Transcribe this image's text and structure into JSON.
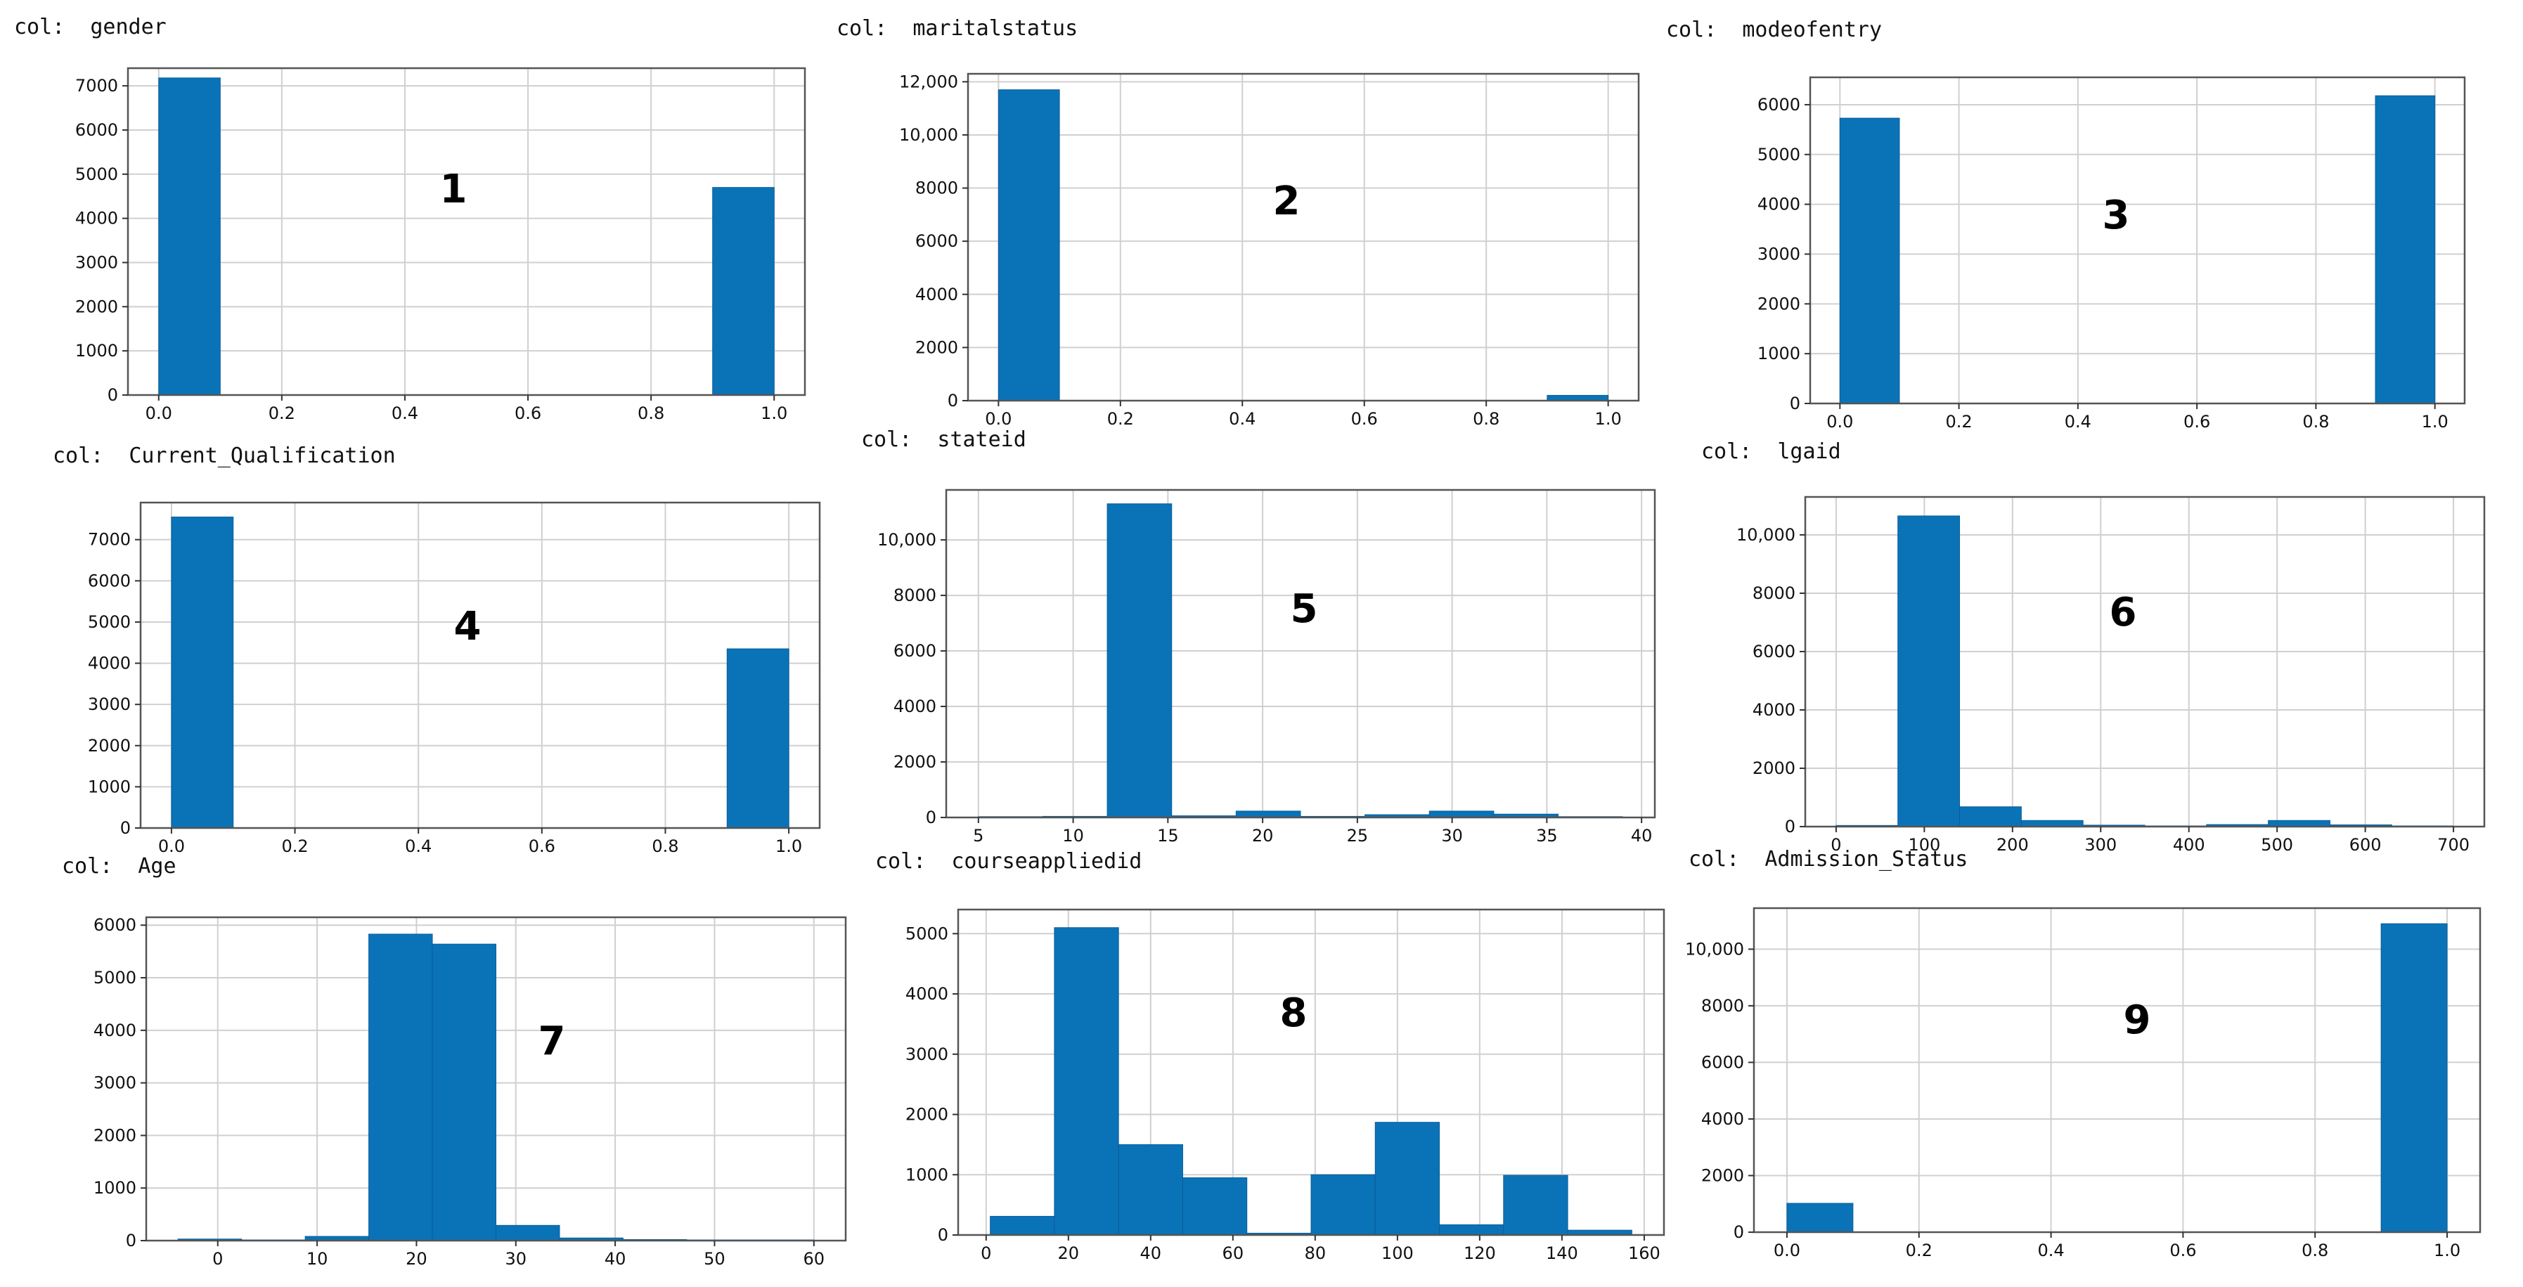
{
  "colors": {
    "bar": "#0a73b7",
    "grid": "#d0d0d0"
  },
  "chart_data": [
    {
      "type": "bar",
      "title": "col:  gender",
      "panel_label": "1",
      "bins": [
        {
          "x0": 0.0,
          "x1": 0.1,
          "y": 7180
        },
        {
          "x0": 0.9,
          "x1": 1.0,
          "y": 4700
        }
      ],
      "xlim": [
        -0.05,
        1.05
      ],
      "ylim": [
        0,
        7400
      ],
      "xticks": [
        {
          "v": 0.0,
          "label": "0.0"
        },
        {
          "v": 0.2,
          "label": "0.2"
        },
        {
          "v": 0.4,
          "label": "0.4"
        },
        {
          "v": 0.6,
          "label": "0.6"
        },
        {
          "v": 0.8,
          "label": "0.8"
        },
        {
          "v": 1.0,
          "label": "1.0"
        }
      ],
      "yticks": [
        {
          "v": 0,
          "label": "0"
        },
        {
          "v": 1000,
          "label": "1000"
        },
        {
          "v": 2000,
          "label": "2000"
        },
        {
          "v": 3000,
          "label": "3000"
        },
        {
          "v": 4000,
          "label": "4000"
        },
        {
          "v": 5000,
          "label": "5000"
        },
        {
          "v": 6000,
          "label": "6000"
        },
        {
          "v": 7000,
          "label": "7000"
        }
      ]
    },
    {
      "type": "bar",
      "title": "col:  maritalstatus",
      "panel_label": "2",
      "bins": [
        {
          "x0": 0.0,
          "x1": 0.1,
          "y": 11700
        },
        {
          "x0": 0.9,
          "x1": 1.0,
          "y": 200
        }
      ],
      "xlim": [
        -0.05,
        1.05
      ],
      "ylim": [
        0,
        12300
      ],
      "xticks": [
        {
          "v": 0.0,
          "label": "0.0"
        },
        {
          "v": 0.2,
          "label": "0.2"
        },
        {
          "v": 0.4,
          "label": "0.4"
        },
        {
          "v": 0.6,
          "label": "0.6"
        },
        {
          "v": 0.8,
          "label": "0.8"
        },
        {
          "v": 1.0,
          "label": "1.0"
        }
      ],
      "yticks": [
        {
          "v": 0,
          "label": "0"
        },
        {
          "v": 2000,
          "label": "2000"
        },
        {
          "v": 4000,
          "label": "4000"
        },
        {
          "v": 6000,
          "label": "6000"
        },
        {
          "v": 8000,
          "label": "8000"
        },
        {
          "v": 10000,
          "label": "10,000"
        },
        {
          "v": 12000,
          "label": "12,000"
        }
      ]
    },
    {
      "type": "bar",
      "title": "col:  modeofentry",
      "panel_label": "3",
      "bins": [
        {
          "x0": 0.0,
          "x1": 0.1,
          "y": 5730
        },
        {
          "x0": 0.9,
          "x1": 1.0,
          "y": 6180
        }
      ],
      "xlim": [
        -0.05,
        1.05
      ],
      "ylim": [
        0,
        6550
      ],
      "xticks": [
        {
          "v": 0.0,
          "label": "0.0"
        },
        {
          "v": 0.2,
          "label": "0.2"
        },
        {
          "v": 0.4,
          "label": "0.4"
        },
        {
          "v": 0.6,
          "label": "0.6"
        },
        {
          "v": 0.8,
          "label": "0.8"
        },
        {
          "v": 1.0,
          "label": "1.0"
        }
      ],
      "yticks": [
        {
          "v": 0,
          "label": "0"
        },
        {
          "v": 1000,
          "label": "1000"
        },
        {
          "v": 2000,
          "label": "2000"
        },
        {
          "v": 3000,
          "label": "3000"
        },
        {
          "v": 4000,
          "label": "4000"
        },
        {
          "v": 5000,
          "label": "5000"
        },
        {
          "v": 6000,
          "label": "6000"
        }
      ]
    },
    {
      "type": "bar",
      "title": "col:  Current_Qualification",
      "panel_label": "4",
      "bins": [
        {
          "x0": 0.0,
          "x1": 0.1,
          "y": 7550
        },
        {
          "x0": 0.9,
          "x1": 1.0,
          "y": 4350
        }
      ],
      "xlim": [
        -0.05,
        1.05
      ],
      "ylim": [
        0,
        7900
      ],
      "xticks": [
        {
          "v": 0.0,
          "label": "0.0"
        },
        {
          "v": 0.2,
          "label": "0.2"
        },
        {
          "v": 0.4,
          "label": "0.4"
        },
        {
          "v": 0.6,
          "label": "0.6"
        },
        {
          "v": 0.8,
          "label": "0.8"
        },
        {
          "v": 1.0,
          "label": "1.0"
        }
      ],
      "yticks": [
        {
          "v": 0,
          "label": "0"
        },
        {
          "v": 1000,
          "label": "1000"
        },
        {
          "v": 2000,
          "label": "2000"
        },
        {
          "v": 3000,
          "label": "3000"
        },
        {
          "v": 4000,
          "label": "4000"
        },
        {
          "v": 5000,
          "label": "5000"
        },
        {
          "v": 6000,
          "label": "6000"
        },
        {
          "v": 7000,
          "label": "7000"
        }
      ]
    },
    {
      "type": "bar",
      "title": "col:  stateid",
      "panel_label": "5",
      "bins": [
        {
          "x0": 5.0,
          "x1": 8.4,
          "y": 30
        },
        {
          "x0": 8.4,
          "x1": 11.8,
          "y": 40
        },
        {
          "x0": 11.8,
          "x1": 15.2,
          "y": 11300
        },
        {
          "x0": 15.2,
          "x1": 18.6,
          "y": 60
        },
        {
          "x0": 18.6,
          "x1": 22.0,
          "y": 230
        },
        {
          "x0": 22.0,
          "x1": 25.4,
          "y": 40
        },
        {
          "x0": 25.4,
          "x1": 28.8,
          "y": 100
        },
        {
          "x0": 28.8,
          "x1": 32.2,
          "y": 230
        },
        {
          "x0": 32.2,
          "x1": 35.6,
          "y": 120
        },
        {
          "x0": 35.6,
          "x1": 39.0,
          "y": 30
        }
      ],
      "xlim": [
        3.3,
        40.7
      ],
      "ylim": [
        0,
        11800
      ],
      "xticks": [
        {
          "v": 5,
          "label": "5"
        },
        {
          "v": 10,
          "label": "10"
        },
        {
          "v": 15,
          "label": "15"
        },
        {
          "v": 20,
          "label": "20"
        },
        {
          "v": 25,
          "label": "25"
        },
        {
          "v": 30,
          "label": "30"
        },
        {
          "v": 35,
          "label": "35"
        },
        {
          "v": 40,
          "label": "40"
        }
      ],
      "yticks": [
        {
          "v": 0,
          "label": "0"
        },
        {
          "v": 2000,
          "label": "2000"
        },
        {
          "v": 4000,
          "label": "4000"
        },
        {
          "v": 6000,
          "label": "6000"
        },
        {
          "v": 8000,
          "label": "8000"
        },
        {
          "v": 10000,
          "label": "10,000"
        }
      ]
    },
    {
      "type": "bar",
      "title": "col:  lgaid",
      "panel_label": "6",
      "bins": [
        {
          "x0": 0,
          "x1": 70,
          "y": 40
        },
        {
          "x0": 70,
          "x1": 140,
          "y": 10650
        },
        {
          "x0": 140,
          "x1": 210,
          "y": 680
        },
        {
          "x0": 210,
          "x1": 280,
          "y": 210
        },
        {
          "x0": 280,
          "x1": 350,
          "y": 50
        },
        {
          "x0": 350,
          "x1": 420,
          "y": 20
        },
        {
          "x0": 420,
          "x1": 490,
          "y": 70
        },
        {
          "x0": 490,
          "x1": 560,
          "y": 210
        },
        {
          "x0": 560,
          "x1": 630,
          "y": 60
        },
        {
          "x0": 630,
          "x1": 700,
          "y": 10
        }
      ],
      "xlim": [
        -35,
        735
      ],
      "ylim": [
        0,
        11300
      ],
      "xticks": [
        {
          "v": 0,
          "label": "0"
        },
        {
          "v": 100,
          "label": "100"
        },
        {
          "v": 200,
          "label": "200"
        },
        {
          "v": 300,
          "label": "300"
        },
        {
          "v": 400,
          "label": "400"
        },
        {
          "v": 500,
          "label": "500"
        },
        {
          "v": 600,
          "label": "600"
        },
        {
          "v": 700,
          "label": "700"
        }
      ],
      "yticks": [
        {
          "v": 0,
          "label": "0"
        },
        {
          "v": 2000,
          "label": "2000"
        },
        {
          "v": 4000,
          "label": "4000"
        },
        {
          "v": 6000,
          "label": "6000"
        },
        {
          "v": 8000,
          "label": "8000"
        },
        {
          "v": 10000,
          "label": "10,000"
        }
      ]
    },
    {
      "type": "bar",
      "title": "col:  Age",
      "panel_label": "7",
      "bins": [
        {
          "x0": -4.0,
          "x1": 2.4,
          "y": 30
        },
        {
          "x0": 2.4,
          "x1": 8.8,
          "y": 10
        },
        {
          "x0": 8.8,
          "x1": 15.2,
          "y": 80
        },
        {
          "x0": 15.2,
          "x1": 21.6,
          "y": 5830
        },
        {
          "x0": 21.6,
          "x1": 28.0,
          "y": 5640
        },
        {
          "x0": 28.0,
          "x1": 34.4,
          "y": 290
        },
        {
          "x0": 34.4,
          "x1": 40.8,
          "y": 50
        },
        {
          "x0": 40.8,
          "x1": 47.2,
          "y": 20
        },
        {
          "x0": 47.2,
          "x1": 53.6,
          "y": 5
        },
        {
          "x0": 53.6,
          "x1": 60.0,
          "y": 5
        }
      ],
      "xlim": [
        -7.2,
        63.2
      ],
      "ylim": [
        0,
        6150
      ],
      "xticks": [
        {
          "v": 0,
          "label": "0"
        },
        {
          "v": 10,
          "label": "10"
        },
        {
          "v": 20,
          "label": "20"
        },
        {
          "v": 30,
          "label": "30"
        },
        {
          "v": 40,
          "label": "40"
        },
        {
          "v": 50,
          "label": "50"
        },
        {
          "v": 60,
          "label": "60"
        }
      ],
      "yticks": [
        {
          "v": 0,
          "label": "0"
        },
        {
          "v": 1000,
          "label": "1000"
        },
        {
          "v": 2000,
          "label": "2000"
        },
        {
          "v": 3000,
          "label": "3000"
        },
        {
          "v": 4000,
          "label": "4000"
        },
        {
          "v": 5000,
          "label": "5000"
        },
        {
          "v": 6000,
          "label": "6000"
        }
      ]
    },
    {
      "type": "bar",
      "title": "col:  courseappliedid",
      "panel_label": "8",
      "bins": [
        {
          "x0": 1,
          "x1": 16.6,
          "y": 310
        },
        {
          "x0": 16.6,
          "x1": 32.2,
          "y": 5100
        },
        {
          "x0": 32.2,
          "x1": 47.8,
          "y": 1500
        },
        {
          "x0": 47.8,
          "x1": 63.4,
          "y": 950
        },
        {
          "x0": 63.4,
          "x1": 79.0,
          "y": 30
        },
        {
          "x0": 79.0,
          "x1": 94.6,
          "y": 1000
        },
        {
          "x0": 94.6,
          "x1": 110.2,
          "y": 1870
        },
        {
          "x0": 110.2,
          "x1": 125.8,
          "y": 170
        },
        {
          "x0": 125.8,
          "x1": 141.4,
          "y": 990
        },
        {
          "x0": 141.4,
          "x1": 157,
          "y": 80
        }
      ],
      "xlim": [
        -6.8,
        164.8
      ],
      "ylim": [
        0,
        5400
      ],
      "xticks": [
        {
          "v": 0,
          "label": "0"
        },
        {
          "v": 20,
          "label": "20"
        },
        {
          "v": 40,
          "label": "40"
        },
        {
          "v": 60,
          "label": "60"
        },
        {
          "v": 80,
          "label": "80"
        },
        {
          "v": 100,
          "label": "100"
        },
        {
          "v": 120,
          "label": "120"
        },
        {
          "v": 140,
          "label": "140"
        },
        {
          "v": 160,
          "label": "160"
        }
      ],
      "yticks": [
        {
          "v": 0,
          "label": "0"
        },
        {
          "v": 1000,
          "label": "1000"
        },
        {
          "v": 2000,
          "label": "2000"
        },
        {
          "v": 3000,
          "label": "3000"
        },
        {
          "v": 4000,
          "label": "4000"
        },
        {
          "v": 5000,
          "label": "5000"
        }
      ]
    },
    {
      "type": "bar",
      "title": "col:  Admission_Status",
      "panel_label": "9",
      "bins": [
        {
          "x0": 0.0,
          "x1": 0.1,
          "y": 1020
        },
        {
          "x0": 0.9,
          "x1": 1.0,
          "y": 10900
        }
      ],
      "xlim": [
        -0.05,
        1.05
      ],
      "ylim": [
        0,
        11450
      ],
      "xticks": [
        {
          "v": 0.0,
          "label": "0.0"
        },
        {
          "v": 0.2,
          "label": "0.2"
        },
        {
          "v": 0.4,
          "label": "0.4"
        },
        {
          "v": 0.6,
          "label": "0.6"
        },
        {
          "v": 0.8,
          "label": "0.8"
        },
        {
          "v": 1.0,
          "label": "1.0"
        }
      ],
      "yticks": [
        {
          "v": 0,
          "label": "0"
        },
        {
          "v": 2000,
          "label": "2000"
        },
        {
          "v": 4000,
          "label": "4000"
        },
        {
          "v": 6000,
          "label": "6000"
        },
        {
          "v": 8000,
          "label": "8000"
        },
        {
          "v": 10000,
          "label": "10,000"
        }
      ]
    }
  ]
}
